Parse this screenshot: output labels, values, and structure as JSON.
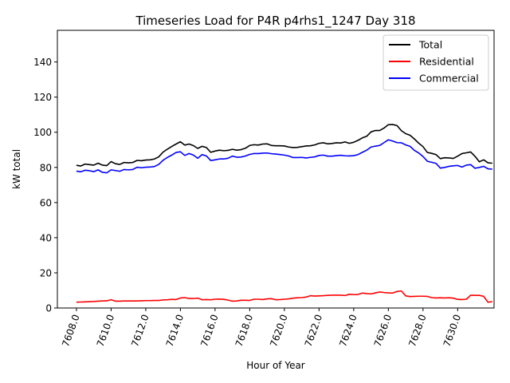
{
  "chart_data": {
    "type": "line",
    "title": "Timeseries Load for P4R p4rhs1_1247  Day 318",
    "xlabel": "Hour of Year",
    "ylabel": "kW total",
    "xlim": [
      7606.9,
      7632.1
    ],
    "ylim": [
      0,
      158
    ],
    "grid": false,
    "legend_position": "top-right",
    "x_ticks": [
      7608,
      7610,
      7612,
      7614,
      7616,
      7618,
      7620,
      7622,
      7624,
      7626,
      7628,
      7630
    ],
    "x_tick_labels": [
      "7608.0",
      "7610.0",
      "7612.0",
      "7614.0",
      "7616.0",
      "7618.0",
      "7620.0",
      "7622.0",
      "7624.0",
      "7626.0",
      "7628.0",
      "7630.0"
    ],
    "y_ticks": [
      0,
      20,
      40,
      60,
      80,
      100,
      120,
      140
    ],
    "y_tick_labels": [
      "0",
      "20",
      "40",
      "60",
      "80",
      "100",
      "120",
      "140"
    ],
    "x_start": 7608,
    "x_step": 0.25,
    "series": [
      {
        "name": "Total",
        "color": "#000000",
        "values": [
          81.2,
          80.8,
          81.9,
          81.6,
          81.3,
          82.4,
          81.3,
          81.0,
          83.3,
          82.1,
          81.7,
          82.8,
          82.6,
          82.8,
          84.0,
          83.8,
          84.2,
          84.3,
          84.8,
          86.0,
          88.7,
          90.4,
          91.9,
          93.3,
          94.6,
          92.7,
          93.3,
          92.4,
          90.8,
          92.0,
          91.3,
          88.6,
          89.3,
          89.8,
          89.5,
          89.7,
          90.3,
          89.8,
          90.1,
          90.9,
          92.5,
          92.9,
          92.7,
          93.3,
          93.4,
          92.5,
          92.3,
          92.3,
          92.2,
          91.6,
          91.3,
          91.4,
          91.8,
          92.2,
          92.3,
          92.8,
          93.7,
          94.0,
          93.4,
          93.6,
          94.0,
          93.9,
          94.5,
          93.7,
          94.3,
          95.4,
          96.8,
          97.7,
          100.2,
          101.0,
          101.0,
          102.4,
          104.3,
          104.4,
          103.8,
          100.9,
          99.2,
          98.3,
          96.2,
          93.8,
          91.8,
          88.5,
          88.0,
          87.3,
          85.0,
          85.5,
          85.4,
          85.1,
          86.4,
          87.9,
          88.3,
          88.8,
          86.3,
          83.2,
          84.3,
          82.6,
          82.4
        ]
      },
      {
        "name": "Residential",
        "color": "#ff0000",
        "values": [
          3.3,
          3.4,
          3.5,
          3.6,
          3.7,
          3.9,
          4.0,
          4.1,
          4.7,
          3.9,
          3.9,
          4.0,
          4.0,
          4.0,
          4.0,
          4.1,
          4.2,
          4.2,
          4.3,
          4.3,
          4.6,
          4.7,
          4.9,
          4.8,
          5.7,
          5.9,
          5.4,
          5.4,
          5.6,
          4.7,
          4.8,
          4.7,
          5.0,
          5.1,
          4.9,
          4.5,
          3.9,
          4.0,
          4.4,
          4.4,
          4.3,
          5.0,
          5.0,
          4.8,
          5.2,
          5.3,
          4.7,
          4.8,
          5.0,
          5.2,
          5.6,
          5.8,
          5.9,
          6.2,
          7.0,
          6.8,
          6.9,
          7.0,
          7.2,
          7.3,
          7.3,
          7.3,
          7.1,
          7.8,
          7.6,
          7.7,
          8.5,
          8.2,
          8.0,
          8.6,
          9.1,
          8.8,
          8.6,
          8.5,
          9.4,
          9.7,
          6.9,
          6.5,
          6.6,
          6.7,
          6.7,
          6.6,
          5.9,
          5.7,
          5.8,
          5.7,
          5.8,
          5.6,
          4.9,
          4.8,
          5.0,
          7.3,
          7.2,
          7.2,
          6.6,
          3.3,
          3.6
        ]
      },
      {
        "name": "Commercial",
        "color": "#0000ff",
        "values": [
          77.9,
          77.5,
          78.4,
          78.1,
          77.6,
          78.6,
          77.2,
          76.9,
          78.6,
          78.2,
          77.8,
          78.8,
          78.6,
          78.8,
          80.1,
          79.8,
          80.1,
          80.2,
          80.5,
          81.7,
          84.1,
          85.7,
          87.0,
          88.5,
          88.9,
          86.8,
          87.9,
          87.0,
          85.2,
          87.3,
          86.5,
          83.9,
          84.3,
          84.8,
          84.8,
          85.2,
          86.4,
          85.8,
          85.9,
          86.5,
          87.4,
          87.9,
          87.9,
          88.1,
          88.2,
          87.8,
          87.6,
          87.3,
          87.0,
          86.5,
          85.6,
          85.6,
          85.7,
          85.4,
          85.7,
          86.0,
          86.8,
          87.0,
          86.4,
          86.4,
          86.7,
          86.9,
          86.6,
          86.5,
          86.7,
          87.3,
          88.6,
          89.8,
          91.6,
          92.1,
          92.5,
          94.1,
          95.7,
          95.0,
          94.1,
          94.0,
          92.8,
          92.0,
          89.7,
          88.2,
          86.2,
          83.5,
          82.9,
          82.3,
          79.6,
          80.0,
          80.6,
          80.9,
          81.1,
          80.2,
          81.3,
          81.6,
          79.5,
          80.0,
          80.6,
          79.2,
          79.0
        ]
      }
    ]
  }
}
